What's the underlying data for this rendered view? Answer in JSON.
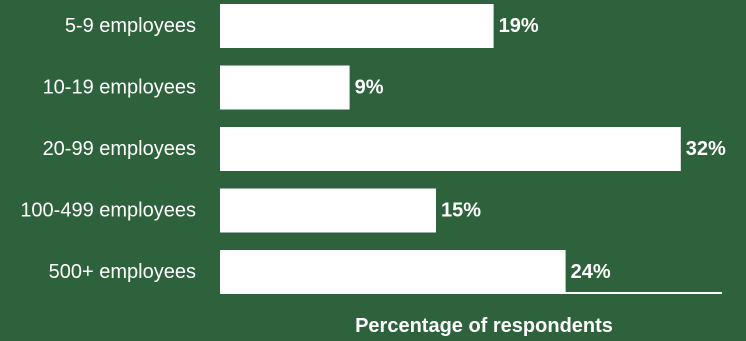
{
  "chart_data": {
    "type": "bar",
    "orientation": "horizontal",
    "categories": [
      "5-9 employees",
      "10-19 employees",
      "20-99 employees",
      "100-499 employees",
      "500+ employees"
    ],
    "values": [
      19,
      9,
      32,
      15,
      24
    ],
    "value_labels": [
      "19%",
      "9%",
      "32%",
      "15%",
      "24%"
    ],
    "xlabel": "Percentage of respondents",
    "ylabel": "",
    "xlim": [
      0,
      35
    ],
    "grid": false,
    "legend": "none"
  },
  "colors": {
    "background": "#2E623C",
    "bar": "#FFFFFF",
    "text": "#FFFFFF"
  }
}
